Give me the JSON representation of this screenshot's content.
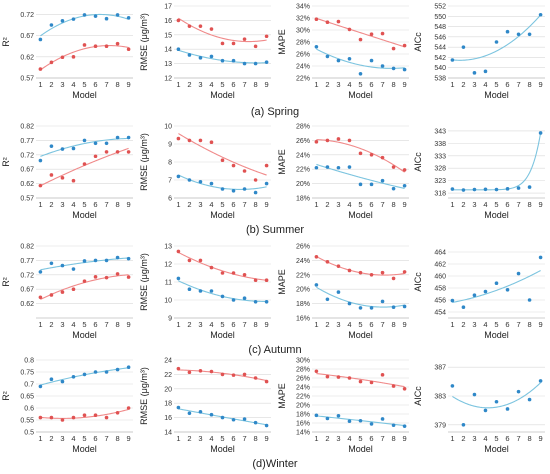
{
  "colors": {
    "red_series": "#e05252",
    "blue_series": "#2f88c8",
    "fit_red": "#f08a8a",
    "fit_blue": "#7cc4df",
    "grid": "#d9d9d9"
  },
  "chart_data": [
    {
      "id": "spring-r2",
      "type": "scatter",
      "row": "spring",
      "xlabel": "Model",
      "ylabel": "R²",
      "x": [
        1,
        2,
        3,
        4,
        5,
        6,
        7,
        8,
        9
      ],
      "ylim": [
        0.57,
        0.74
      ],
      "yticks": [
        {
          "v": 0.57,
          "label": "0.57"
        },
        {
          "v": 0.62,
          "label": "0.62"
        },
        {
          "v": 0.67,
          "label": "0.67"
        },
        {
          "v": 0.72,
          "label": "0.72"
        }
      ],
      "series": [
        {
          "color": "blue",
          "values": [
            0.661,
            0.695,
            0.705,
            0.709,
            0.719,
            0.716,
            0.71,
            0.719,
            0.712
          ]
        },
        {
          "color": "red",
          "values": [
            0.591,
            0.607,
            0.619,
            0.62,
            0.648,
            0.645,
            0.645,
            0.651,
            0.638
          ]
        }
      ]
    },
    {
      "id": "spring-rmse",
      "type": "scatter",
      "row": "spring",
      "xlabel": "Model",
      "ylabel": "RMSE (μg/m³)",
      "x": [
        1,
        2,
        3,
        4,
        5,
        6,
        7,
        8,
        9
      ],
      "ylim": [
        12,
        17
      ],
      "yticks": [
        {
          "v": 12,
          "label": "12"
        },
        {
          "v": 13,
          "label": "13"
        },
        {
          "v": 14,
          "label": "14"
        },
        {
          "v": 15,
          "label": "15"
        },
        {
          "v": 16,
          "label": "16"
        },
        {
          "v": 17,
          "label": "17"
        }
      ],
      "series": [
        {
          "color": "red",
          "values": [
            16.0,
            15.6,
            15.6,
            15.4,
            14.4,
            14.4,
            14.7,
            14.2,
            14.9
          ]
        },
        {
          "color": "blue",
          "values": [
            14.0,
            13.6,
            13.4,
            13.5,
            13.2,
            13.2,
            13.0,
            13.0,
            13.1
          ]
        }
      ]
    },
    {
      "id": "spring-mape",
      "type": "scatter",
      "row": "spring",
      "xlabel": "Model",
      "ylabel": "MAPE",
      "x": [
        1,
        2,
        3,
        4,
        5,
        6,
        7,
        8,
        9
      ],
      "ylim": [
        22,
        34
      ],
      "yticks": [
        {
          "v": 22,
          "label": "22%"
        },
        {
          "v": 24,
          "label": "24%"
        },
        {
          "v": 26,
          "label": "26%"
        },
        {
          "v": 28,
          "label": "28%"
        },
        {
          "v": 30,
          "label": "30%"
        },
        {
          "v": 32,
          "label": "32%"
        },
        {
          "v": 34,
          "label": "34%"
        }
      ],
      "series": [
        {
          "color": "red",
          "values": [
            31.8,
            31.3,
            31.4,
            30.1,
            28.4,
            29.3,
            29.4,
            26.9,
            27.4
          ]
        },
        {
          "color": "blue",
          "values": [
            27.2,
            25.6,
            24.9,
            25.2,
            22.7,
            24.9,
            24.0,
            23.6,
            23.4
          ]
        }
      ]
    },
    {
      "id": "spring-aicc",
      "type": "scatter",
      "row": "spring",
      "xlabel": "Model",
      "ylabel": "AICc",
      "x": [
        1,
        2,
        3,
        4,
        5,
        6,
        7,
        8,
        9
      ],
      "ylim": [
        538,
        552
      ],
      "yticks": [
        {
          "v": 538,
          "label": "538"
        },
        {
          "v": 540,
          "label": "540"
        },
        {
          "v": 542,
          "label": "542"
        },
        {
          "v": 544,
          "label": "544"
        },
        {
          "v": 546,
          "label": "546"
        },
        {
          "v": 548,
          "label": "548"
        },
        {
          "v": 550,
          "label": "550"
        },
        {
          "v": 552,
          "label": "552"
        }
      ],
      "series": [
        {
          "color": "blue",
          "values": [
            541.5,
            544.0,
            539.0,
            539.3,
            545.0,
            547.0,
            546.5,
            546.5,
            550.3
          ]
        }
      ]
    },
    {
      "id": "summer-r2",
      "type": "scatter",
      "row": "summer",
      "xlabel": "Model",
      "ylabel": "R²",
      "x": [
        1,
        2,
        3,
        4,
        5,
        6,
        7,
        8,
        9
      ],
      "ylim": [
        0.57,
        0.82
      ],
      "yticks": [
        {
          "v": 0.57,
          "label": "0.57"
        },
        {
          "v": 0.62,
          "label": "0.62"
        },
        {
          "v": 0.67,
          "label": "0.67"
        },
        {
          "v": 0.72,
          "label": "0.72"
        },
        {
          "v": 0.77,
          "label": "0.77"
        },
        {
          "v": 0.82,
          "label": "0.82"
        }
      ],
      "series": [
        {
          "color": "blue",
          "values": [
            0.7,
            0.75,
            0.74,
            0.742,
            0.77,
            0.76,
            0.76,
            0.78,
            0.78
          ]
        },
        {
          "color": "red",
          "values": [
            0.613,
            0.65,
            0.64,
            0.63,
            0.688,
            0.715,
            0.73,
            0.73,
            0.73
          ]
        }
      ]
    },
    {
      "id": "summer-rmse",
      "type": "scatter",
      "row": "summer",
      "xlabel": "Model",
      "ylabel": "RMSE (μg/m³)",
      "x": [
        1,
        2,
        3,
        4,
        5,
        6,
        7,
        8,
        9
      ],
      "ylim": [
        6,
        10
      ],
      "yticks": [
        {
          "v": 6,
          "label": "6"
        },
        {
          "v": 7,
          "label": "7"
        },
        {
          "v": 8,
          "label": "8"
        },
        {
          "v": 9,
          "label": "9"
        },
        {
          "v": 10,
          "label": "10"
        }
      ],
      "series": [
        {
          "color": "red",
          "values": [
            9.3,
            9.2,
            9.2,
            9.1,
            8.1,
            7.8,
            7.5,
            7.0,
            7.8
          ]
        },
        {
          "color": "blue",
          "values": [
            7.2,
            7.0,
            6.9,
            6.8,
            6.5,
            6.4,
            6.5,
            6.3,
            6.8
          ]
        }
      ]
    },
    {
      "id": "summer-mape",
      "type": "scatter",
      "row": "summer",
      "xlabel": "Model",
      "ylabel": "MAPE",
      "x": [
        1,
        2,
        3,
        4,
        5,
        6,
        7,
        8,
        9
      ],
      "ylim": [
        18,
        28
      ],
      "yticks": [
        {
          "v": 18,
          "label": "18%"
        },
        {
          "v": 20,
          "label": "20%"
        },
        {
          "v": 22,
          "label": "22%"
        },
        {
          "v": 24,
          "label": "24%"
        },
        {
          "v": 26,
          "label": "26%"
        },
        {
          "v": 28,
          "label": "28%"
        }
      ],
      "series": [
        {
          "color": "red",
          "values": [
            25.8,
            26.0,
            26.2,
            26.0,
            24.2,
            24.0,
            23.6,
            22.3,
            21.9
          ]
        },
        {
          "color": "blue",
          "values": [
            22.2,
            22.3,
            22.2,
            22.3,
            19.9,
            19.9,
            20.4,
            19.3,
            19.7
          ]
        }
      ]
    },
    {
      "id": "summer-aicc",
      "type": "scatter",
      "row": "summer",
      "xlabel": "Model",
      "ylabel": "AICc",
      "x": [
        1,
        2,
        3,
        4,
        5,
        6,
        7,
        8,
        9
      ],
      "ylim": [
        316,
        345
      ],
      "yticks": [
        {
          "v": 318,
          "label": "318"
        },
        {
          "v": 323,
          "label": "323"
        },
        {
          "v": 328,
          "label": "328"
        },
        {
          "v": 333,
          "label": "333"
        },
        {
          "v": 338,
          "label": "338"
        },
        {
          "v": 343,
          "label": "343"
        }
      ],
      "series": [
        {
          "color": "blue",
          "values": [
            319.6,
            319.2,
            319.4,
            319.5,
            319.4,
            319.7,
            320.0,
            320.4,
            342.2
          ]
        }
      ]
    },
    {
      "id": "autumn-r2",
      "type": "scatter",
      "row": "autumn",
      "xlabel": "Model",
      "ylabel": "R²",
      "x": [
        1,
        2,
        3,
        4,
        5,
        6,
        7,
        8,
        9
      ],
      "ylim": [
        0.57,
        0.82
      ],
      "yticks": [
        {
          "v": 0.62,
          "label": "0.62"
        },
        {
          "v": 0.67,
          "label": "0.67"
        },
        {
          "v": 0.72,
          "label": "0.72"
        },
        {
          "v": 0.77,
          "label": "0.77"
        },
        {
          "v": 0.82,
          "label": "0.82"
        }
      ],
      "series": [
        {
          "color": "blue",
          "values": [
            0.73,
            0.76,
            0.752,
            0.74,
            0.768,
            0.77,
            0.77,
            0.78,
            0.776
          ]
        },
        {
          "color": "red",
          "values": [
            0.642,
            0.65,
            0.66,
            0.67,
            0.698,
            0.713,
            0.71,
            0.723,
            0.712
          ]
        }
      ]
    },
    {
      "id": "autumn-rmse",
      "type": "scatter",
      "row": "autumn",
      "xlabel": "Model",
      "ylabel": "RMSE (μg/m³)",
      "x": [
        1,
        2,
        3,
        4,
        5,
        6,
        7,
        8,
        9
      ],
      "ylim": [
        9,
        13
      ],
      "yticks": [
        {
          "v": 9,
          "label": "9"
        },
        {
          "v": 10,
          "label": "10"
        },
        {
          "v": 11,
          "label": "11"
        },
        {
          "v": 12,
          "label": "12"
        },
        {
          "v": 13,
          "label": "13"
        }
      ],
      "series": [
        {
          "color": "red",
          "values": [
            12.7,
            12.2,
            12.2,
            11.8,
            11.5,
            11.5,
            11.4,
            11.1,
            11.1
          ]
        },
        {
          "color": "blue",
          "values": [
            11.2,
            10.6,
            10.5,
            10.5,
            10.2,
            10.0,
            10.1,
            9.9,
            9.9
          ]
        }
      ]
    },
    {
      "id": "autumn-mape",
      "type": "scatter",
      "row": "autumn",
      "xlabel": "Model",
      "ylabel": "MAPE",
      "x": [
        1,
        2,
        3,
        4,
        5,
        6,
        7,
        8,
        9
      ],
      "ylim": [
        16,
        26
      ],
      "yticks": [
        {
          "v": 16,
          "label": "16%"
        },
        {
          "v": 18,
          "label": "18%"
        },
        {
          "v": 20,
          "label": "20%"
        },
        {
          "v": 22,
          "label": "22%"
        },
        {
          "v": 24,
          "label": "24%"
        },
        {
          "v": 26,
          "label": "26%"
        }
      ],
      "series": [
        {
          "color": "red",
          "values": [
            24.5,
            23.8,
            23.2,
            22.6,
            22.3,
            22.0,
            22.3,
            21.5,
            22.4
          ]
        },
        {
          "color": "blue",
          "values": [
            20.6,
            18.6,
            19.6,
            18.0,
            17.4,
            17.4,
            18.3,
            17.5,
            17.6
          ]
        }
      ]
    },
    {
      "id": "autumn-aicc",
      "type": "scatter",
      "row": "autumn",
      "xlabel": "Model",
      "ylabel": "AICc",
      "x": [
        1,
        2,
        3,
        4,
        5,
        6,
        7,
        8,
        9
      ],
      "ylim": [
        453,
        465
      ],
      "yticks": [
        {
          "v": 454,
          "label": "454"
        },
        {
          "v": 456,
          "label": "456"
        },
        {
          "v": 458,
          "label": "458"
        },
        {
          "v": 460,
          "label": "460"
        },
        {
          "v": 462,
          "label": "462"
        },
        {
          "v": 464,
          "label": "464"
        }
      ],
      "series": [
        {
          "color": "blue",
          "values": [
            455.9,
            454.8,
            456.8,
            457.4,
            458.8,
            457.7,
            460.4,
            456.0,
            463.1
          ]
        }
      ]
    },
    {
      "id": "winter-r2",
      "type": "scatter",
      "row": "winter",
      "xlabel": "Model",
      "ylabel": "R²",
      "x": [
        1,
        2,
        3,
        4,
        5,
        6,
        7,
        8,
        9
      ],
      "ylim": [
        0.5,
        0.8
      ],
      "yticks": [
        {
          "v": 0.5,
          "label": "0.5"
        },
        {
          "v": 0.55,
          "label": "0.55"
        },
        {
          "v": 0.6,
          "label": "0.6"
        },
        {
          "v": 0.65,
          "label": "0.65"
        },
        {
          "v": 0.7,
          "label": "0.7"
        },
        {
          "v": 0.75,
          "label": "0.75"
        },
        {
          "v": 0.8,
          "label": "0.8"
        }
      ],
      "series": [
        {
          "color": "blue",
          "values": [
            0.69,
            0.72,
            0.71,
            0.73,
            0.74,
            0.75,
            0.75,
            0.76,
            0.77
          ]
        },
        {
          "color": "red",
          "values": [
            0.56,
            0.56,
            0.55,
            0.56,
            0.57,
            0.57,
            0.56,
            0.58,
            0.6
          ]
        }
      ]
    },
    {
      "id": "winter-rmse",
      "type": "scatter",
      "row": "winter",
      "xlabel": "Model",
      "ylabel": "RMSE (μg/m³)",
      "x": [
        1,
        2,
        3,
        4,
        5,
        6,
        7,
        8,
        9
      ],
      "ylim": [
        14,
        24
      ],
      "yticks": [
        {
          "v": 14,
          "label": "14"
        },
        {
          "v": 16,
          "label": "16"
        },
        {
          "v": 18,
          "label": "18"
        },
        {
          "v": 20,
          "label": "20"
        },
        {
          "v": 22,
          "label": "22"
        },
        {
          "v": 24,
          "label": "24"
        }
      ],
      "series": [
        {
          "color": "red",
          "values": [
            22.8,
            22.3,
            22.5,
            22.4,
            22.0,
            21.9,
            22.0,
            21.5,
            21.0
          ]
        },
        {
          "color": "blue",
          "values": [
            17.4,
            16.6,
            16.8,
            16.4,
            16.0,
            15.7,
            15.8,
            15.3,
            14.9
          ]
        }
      ]
    },
    {
      "id": "winter-mape",
      "type": "scatter",
      "row": "winter",
      "xlabel": "Model",
      "ylabel": "MAPE",
      "x": [
        1,
        2,
        3,
        4,
        5,
        6,
        7,
        8,
        9
      ],
      "ylim": [
        14,
        30
      ],
      "yticks": [
        {
          "v": 14,
          "label": "14%"
        },
        {
          "v": 16,
          "label": "16%"
        },
        {
          "v": 18,
          "label": "18%"
        },
        {
          "v": 20,
          "label": "20%"
        },
        {
          "v": 22,
          "label": "22%"
        },
        {
          "v": 24,
          "label": "24%"
        },
        {
          "v": 26,
          "label": "26%"
        },
        {
          "v": 28,
          "label": "28%"
        },
        {
          "v": 30,
          "label": "30%"
        }
      ],
      "series": [
        {
          "color": "red",
          "values": [
            27.5,
            26.3,
            26.2,
            26.0,
            25.2,
            25.0,
            26.7,
            24.2,
            23.6
          ]
        },
        {
          "color": "blue",
          "values": [
            17.7,
            17.0,
            17.6,
            16.4,
            16.5,
            15.8,
            16.9,
            15.5,
            15.3
          ]
        }
      ]
    },
    {
      "id": "winter-aicc",
      "type": "scatter",
      "row": "winter",
      "xlabel": "Model",
      "ylabel": "AICc",
      "x": [
        1,
        2,
        3,
        4,
        5,
        6,
        7,
        8,
        9
      ],
      "ylim": [
        378,
        388
      ],
      "yticks": [
        {
          "v": 379,
          "label": "379"
        },
        {
          "v": 383,
          "label": "383"
        },
        {
          "v": 387,
          "label": "387"
        }
      ],
      "series": [
        {
          "color": "blue",
          "values": [
            384.4,
            379.0,
            383.2,
            381.0,
            382.2,
            381.2,
            383.6,
            382.5,
            385.1
          ]
        }
      ]
    }
  ],
  "captions": {
    "spring": "(a) Spring",
    "summer": "(b) Summer",
    "autumn": "(c) Autumn",
    "winter": "(d)Winter"
  }
}
